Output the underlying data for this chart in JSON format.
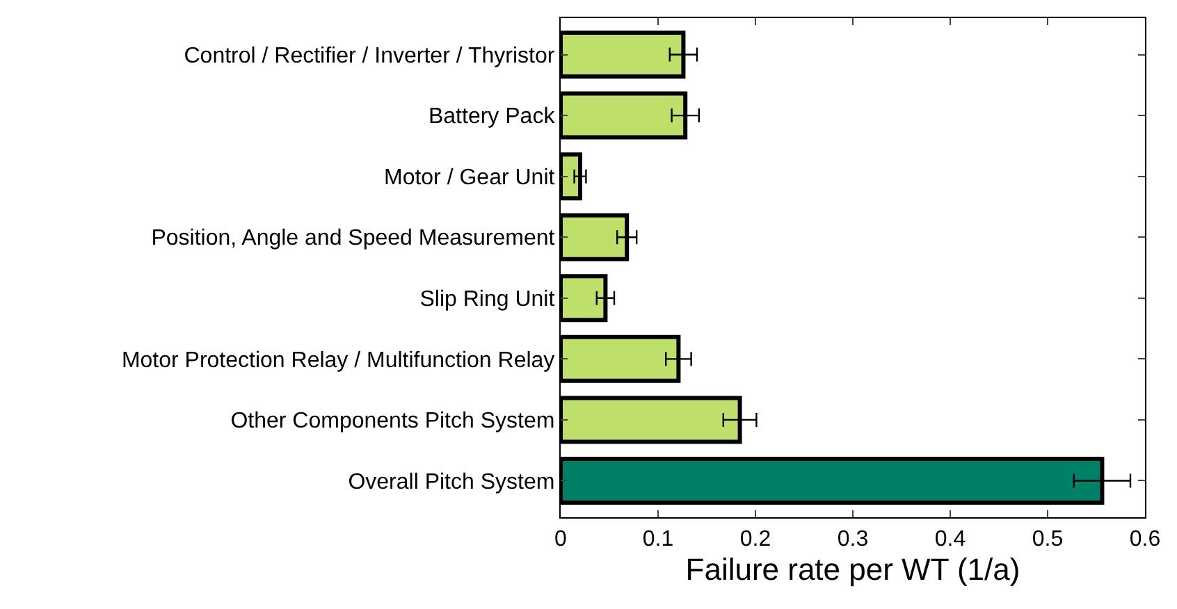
{
  "chart_data": {
    "type": "bar",
    "orientation": "horizontal",
    "xlabel": "Failure rate per WT (1/a)",
    "categories": [
      "Control / Rectifier / Inverter / Thyristor",
      "Battery Pack",
      "Motor / Gear Unit",
      "Position, Angle and Speed Measurement",
      "Slip Ring Unit",
      "Motor Protection Relay / Multifunction Relay",
      "Other Components Pitch System",
      "Overall Pitch System"
    ],
    "values": [
      0.126,
      0.128,
      0.02,
      0.068,
      0.046,
      0.121,
      0.184,
      0.556
    ],
    "errors": [
      0.014,
      0.014,
      0.006,
      0.01,
      0.009,
      0.013,
      0.017,
      0.029
    ],
    "colors": [
      "#bedf6a",
      "#bedf6a",
      "#bedf6a",
      "#bedf6a",
      "#bedf6a",
      "#bedf6a",
      "#bedf6a",
      "#008066"
    ],
    "xlim": [
      0,
      0.6
    ],
    "xticks": [
      0,
      0.1,
      0.2,
      0.3,
      0.4,
      0.5,
      0.6
    ]
  }
}
